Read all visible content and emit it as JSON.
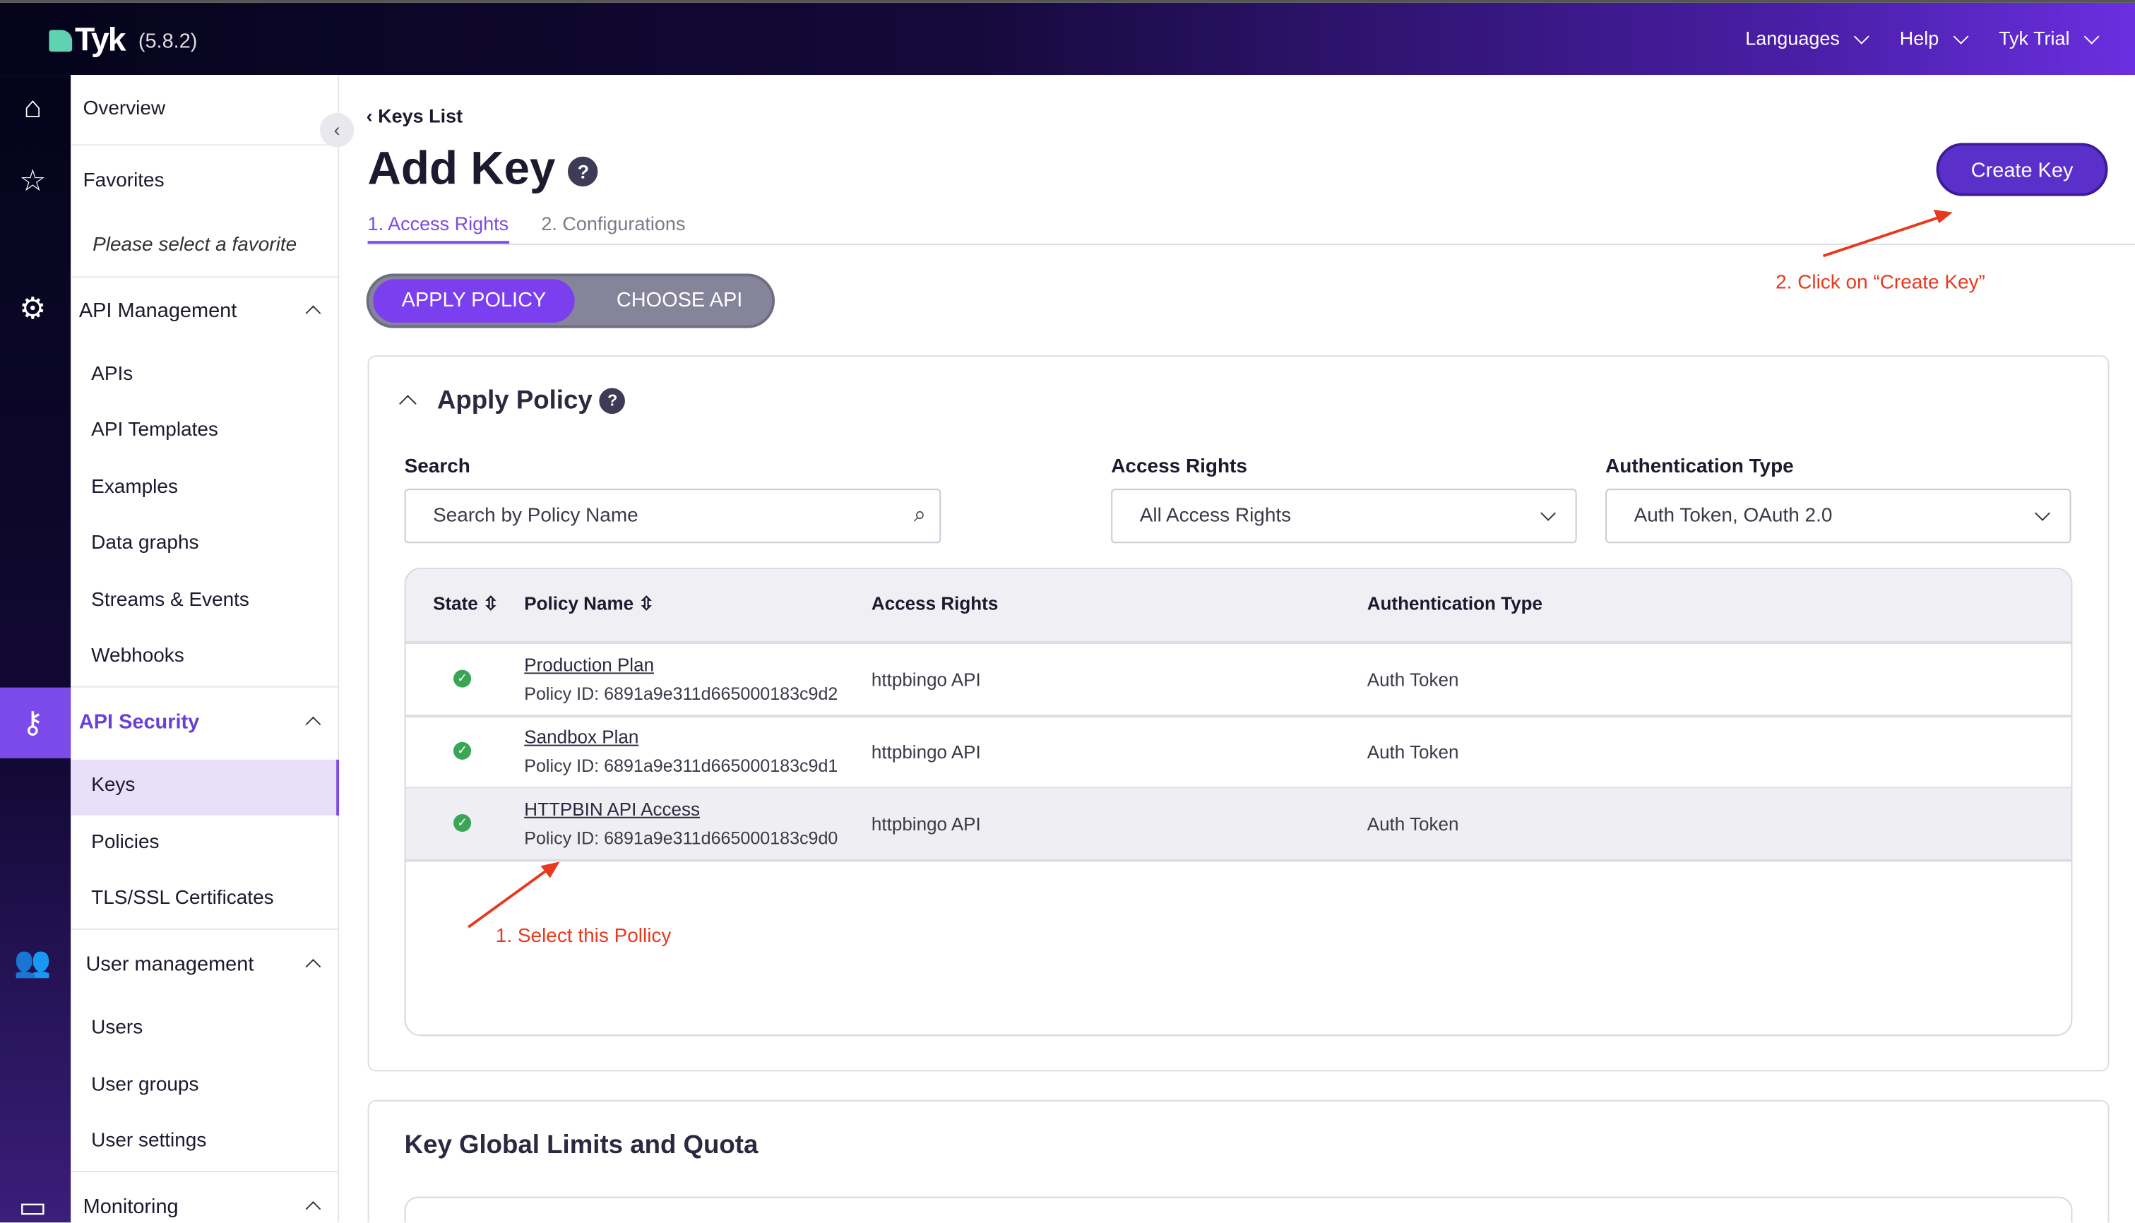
{
  "header": {
    "brand": "Tyk",
    "version": "(5.8.2)",
    "nav": [
      "Languages",
      "Help",
      "Tyk Trial"
    ]
  },
  "rail_icons": [
    "home-icon",
    "star-icon",
    "api-gear-icon",
    "key-icon",
    "users-icon",
    "monitoring-icon"
  ],
  "sidebar": {
    "overview": "Overview",
    "favorites": "Favorites",
    "favorites_empty": "Please select a favorite",
    "api_management": "API Management",
    "api_items": [
      "APIs",
      "API Templates",
      "Examples",
      "Data graphs",
      "Streams & Events",
      "Webhooks"
    ],
    "api_security": "API Security",
    "security_items": [
      "Keys",
      "Policies",
      "TLS/SSL Certificates"
    ],
    "user_management": "User management",
    "user_items": [
      "Users",
      "User groups",
      "User settings"
    ],
    "monitoring": "Monitoring"
  },
  "page": {
    "breadcrumb": "Keys List",
    "title": "Add Key",
    "help": "?",
    "tabs": [
      "1. Access Rights",
      "2. Configurations"
    ],
    "create_button": "Create Key",
    "toggle": {
      "apply": "APPLY POLICY",
      "choose": "CHOOSE API"
    }
  },
  "apply_policy": {
    "title": "Apply Policy",
    "search_label": "Search",
    "search_placeholder": "Search by Policy Name",
    "access_label": "Access Rights",
    "access_value": "All Access Rights",
    "auth_label": "Authentication Type",
    "auth_value": "Auth Token, OAuth 2.0",
    "columns": [
      "State",
      "Policy Name",
      "Access Rights",
      "Authentication Type"
    ],
    "rows": [
      {
        "name": "Production Plan",
        "id": "Policy ID: 6891a9e311d665000183c9d2",
        "access": "httpbingo API",
        "auth": "Auth Token",
        "state": "active"
      },
      {
        "name": "Sandbox Plan",
        "id": "Policy ID: 6891a9e311d665000183c9d1",
        "access": "httpbingo API",
        "auth": "Auth Token",
        "state": "active"
      },
      {
        "name": "HTTPBIN API Access",
        "id": "Policy ID: 6891a9e311d665000183c9d0",
        "access": "httpbingo API",
        "auth": "Auth Token",
        "state": "active"
      }
    ]
  },
  "limits": {
    "title": "Key Global Limits and Quota"
  },
  "annotations": {
    "step1": "1. Select this Pollicy",
    "step2": "2. Click on “Create Key”",
    "color": "#e8391e"
  },
  "colors": {
    "accent": "#7b4ae8",
    "create": "#5b2fc9"
  }
}
